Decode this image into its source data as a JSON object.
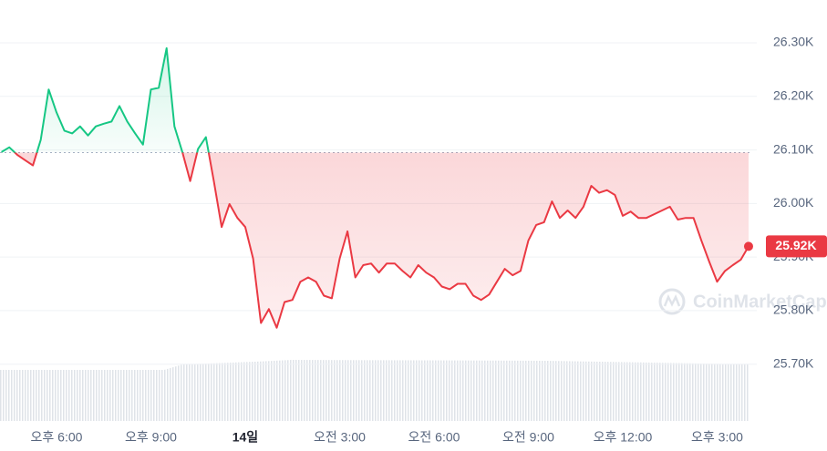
{
  "chart_data": {
    "type": "line",
    "categories": [
      null,
      null,
      null,
      null,
      null,
      null,
      null,
      "오후 6:00",
      null,
      null,
      null,
      null,
      null,
      null,
      null,
      null,
      null,
      null,
      null,
      "오후 9:00",
      null,
      null,
      null,
      null,
      null,
      null,
      null,
      null,
      null,
      null,
      null,
      "14일",
      null,
      null,
      null,
      null,
      null,
      null,
      null,
      null,
      null,
      null,
      null,
      "오전 3:00",
      null,
      null,
      null,
      null,
      null,
      null,
      null,
      null,
      null,
      null,
      null,
      "오전 6:00",
      null,
      null,
      null,
      null,
      null,
      null,
      null,
      null,
      null,
      null,
      null,
      "오전 9:00",
      null,
      null,
      null,
      null,
      null,
      null,
      null,
      null,
      null,
      null,
      null,
      "오후 12:00",
      null,
      null,
      null,
      null,
      null,
      null,
      null,
      null,
      null,
      null,
      null,
      "오후 3:00",
      null,
      null,
      null,
      null
    ],
    "values": [
      26096,
      26105,
      26091,
      26081,
      26071,
      26119,
      26213,
      26170,
      26136,
      26131,
      26144,
      26127,
      26144,
      26149,
      26153,
      26182,
      26153,
      26131,
      26110,
      26213,
      26216,
      26290,
      26144,
      26096,
      26042,
      26102,
      26124,
      26042,
      25956,
      25999,
      25973,
      25956,
      25897,
      25777,
      25803,
      25768,
      25816,
      25820,
      25854,
      25862,
      25854,
      25828,
      25823,
      25897,
      25948,
      25862,
      25885,
      25888,
      25871,
      25888,
      25888,
      25874,
      25862,
      25885,
      25871,
      25862,
      25845,
      25840,
      25850,
      25850,
      25828,
      25820,
      25830,
      25854,
      25878,
      25866,
      25874,
      25931,
      25960,
      25965,
      26004,
      25973,
      25987,
      25973,
      25994,
      26033,
      26020,
      26025,
      26016,
      25977,
      25985,
      25973,
      25973,
      25980,
      25987,
      25994,
      25970,
      25973,
      25973,
      25931,
      25891,
      25854,
      25874,
      25885,
      25895,
      25920
    ],
    "value_labels": [
      null,
      null,
      null,
      null,
      null,
      null,
      null,
      null,
      null,
      null,
      null,
      null,
      null,
      null,
      null,
      null,
      null,
      null,
      null,
      null,
      null,
      null,
      null,
      null,
      null,
      null,
      null,
      null,
      null,
      null,
      null,
      null,
      null,
      null,
      null,
      null,
      null,
      null,
      null,
      null,
      null,
      null,
      null,
      null,
      null,
      null,
      null,
      null,
      null,
      null,
      null,
      null,
      null,
      null,
      null,
      null,
      null,
      null,
      null,
      null,
      null,
      null,
      null,
      null,
      null,
      null,
      null,
      null,
      null,
      null,
      null,
      null,
      null,
      null,
      null,
      null,
      null,
      null,
      null,
      null,
      null,
      null,
      null,
      null,
      null,
      null,
      null,
      null,
      null,
      null,
      null,
      null,
      null,
      null,
      null,
      "25.92K"
    ],
    "baseline": 26095,
    "up_color": "#16c784",
    "down_color": "#ea3943",
    "ylim": [
      25600,
      26380
    ],
    "yticks": [
      {
        "value": 25700,
        "label": "25.70K"
      },
      {
        "value": 25800,
        "label": "25.80K"
      },
      {
        "value": 25900,
        "label": "25.90K"
      },
      {
        "value": 26000,
        "label": "26.00K"
      },
      {
        "value": 26100,
        "label": "26.10K"
      },
      {
        "value": 26200,
        "label": "26.20K"
      },
      {
        "value": 26300,
        "label": "26.30K"
      }
    ],
    "grid": true,
    "watermark": "CoinMarketCap"
  }
}
